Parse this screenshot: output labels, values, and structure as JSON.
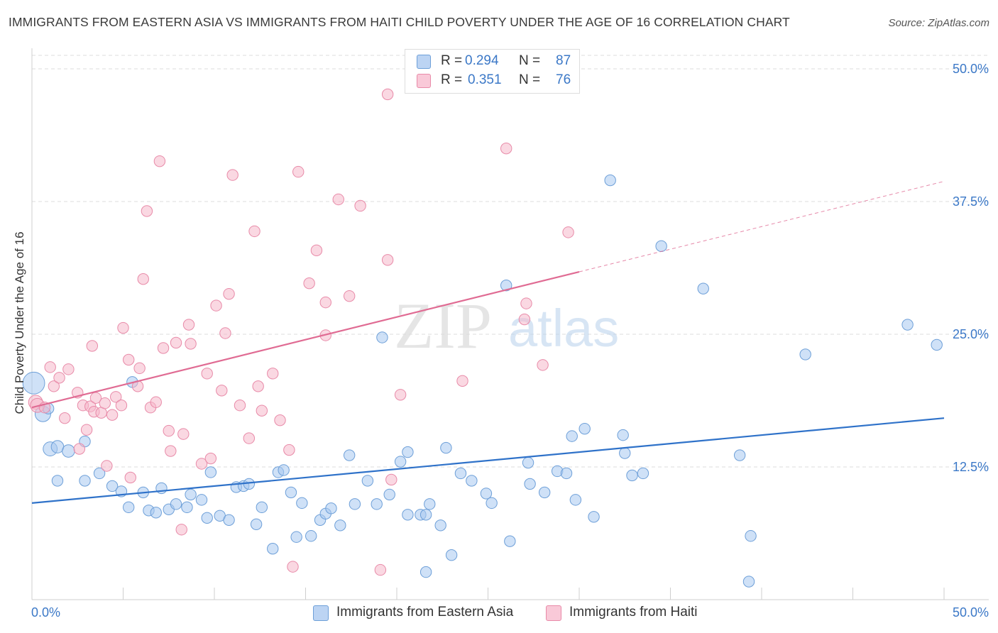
{
  "header": {
    "title": "IMMIGRANTS FROM EASTERN ASIA VS IMMIGRANTS FROM HAITI CHILD POVERTY UNDER THE AGE OF 16 CORRELATION CHART",
    "source": "Source: ZipAtlas.com"
  },
  "watermark": {
    "zip": "ZIP",
    "atlas": "atlas"
  },
  "legend": {
    "series1": {
      "r_label": "R =",
      "r_value": "0.294",
      "n_label": "N =",
      "n_value": "87"
    },
    "series2": {
      "r_label": "R =",
      "r_value": "0.351",
      "n_label": "N =",
      "n_value": "76"
    }
  },
  "colors": {
    "blue_fill": "#a8c8f0",
    "blue_stroke": "#6d9fd8",
    "blue_line": "#2f72c9",
    "pink_fill": "#f6b8cb",
    "pink_stroke": "#e88aa8",
    "pink_line": "#e06b93",
    "axis_label": "#3b78c7",
    "grid": "#dcdcdc"
  },
  "chart_data": {
    "type": "scatter",
    "title": "IMMIGRANTS FROM EASTERN ASIA VS IMMIGRANTS FROM HAITI CHILD POVERTY UNDER THE AGE OF 16 CORRELATION CHART",
    "xlabel": "",
    "ylabel": "Child Poverty Under the Age of 16",
    "xlim": [
      0,
      50
    ],
    "ylim": [
      0,
      50
    ],
    "x_tick_labels": [
      "0.0%",
      "50.0%"
    ],
    "y_tick_labels": [
      "12.5%",
      "25.0%",
      "37.5%",
      "50.0%"
    ],
    "y_ticks": [
      12.5,
      25,
      37.5,
      50
    ],
    "grid": true,
    "legend_position": "top-center",
    "series": [
      {
        "name": "Immigrants from Eastern Asia",
        "r": 0.294,
        "n": 87,
        "trend": {
          "x": [
            0,
            50
          ],
          "y": [
            9.1,
            17.1
          ],
          "dashed_from": null
        },
        "points": [
          [
            0.1,
            20.4,
            14
          ],
          [
            0.6,
            17.5,
            10
          ],
          [
            0.9,
            18.0,
            7
          ],
          [
            1.0,
            14.2,
            9
          ],
          [
            1.4,
            14.4,
            8
          ],
          [
            2.0,
            14.0,
            8
          ],
          [
            1.4,
            11.2,
            7
          ],
          [
            2.9,
            14.9,
            7
          ],
          [
            2.9,
            11.2,
            7
          ],
          [
            3.7,
            11.9,
            7
          ],
          [
            4.4,
            10.7,
            7
          ],
          [
            4.9,
            10.2,
            7
          ],
          [
            5.3,
            8.7,
            7
          ],
          [
            5.5,
            20.5,
            7
          ],
          [
            6.1,
            10.1,
            7
          ],
          [
            6.4,
            8.4,
            7
          ],
          [
            6.8,
            8.2,
            7
          ],
          [
            7.1,
            10.5,
            7
          ],
          [
            7.5,
            8.5,
            7
          ],
          [
            7.9,
            9.0,
            7
          ],
          [
            8.5,
            8.7,
            7
          ],
          [
            8.7,
            9.9,
            7
          ],
          [
            9.3,
            9.4,
            7
          ],
          [
            9.6,
            7.7,
            7
          ],
          [
            9.8,
            12.0,
            7
          ],
          [
            10.3,
            7.9,
            7
          ],
          [
            10.8,
            7.5,
            7
          ],
          [
            11.2,
            10.6,
            7
          ],
          [
            11.6,
            10.7,
            7
          ],
          [
            11.9,
            10.9,
            7
          ],
          [
            12.6,
            8.7,
            7
          ],
          [
            12.3,
            7.1,
            7
          ],
          [
            13.2,
            4.8,
            7
          ],
          [
            13.5,
            12.0,
            7
          ],
          [
            13.8,
            12.2,
            7
          ],
          [
            14.2,
            10.1,
            7
          ],
          [
            14.5,
            5.9,
            7
          ],
          [
            14.8,
            9.1,
            7
          ],
          [
            15.3,
            6.0,
            7
          ],
          [
            15.8,
            7.5,
            7
          ],
          [
            16.1,
            8.1,
            7
          ],
          [
            16.4,
            8.6,
            7
          ],
          [
            16.9,
            7.0,
            7
          ],
          [
            17.4,
            13.6,
            7
          ],
          [
            17.7,
            9.0,
            7
          ],
          [
            18.4,
            11.2,
            7
          ],
          [
            18.9,
            9.0,
            7
          ],
          [
            19.2,
            24.7,
            7
          ],
          [
            19.6,
            9.9,
            7
          ],
          [
            20.2,
            13.0,
            7
          ],
          [
            20.6,
            13.9,
            7
          ],
          [
            20.6,
            8.0,
            7
          ],
          [
            21.3,
            8.0,
            7
          ],
          [
            21.6,
            2.6,
            7
          ],
          [
            21.6,
            8.0,
            7
          ],
          [
            21.8,
            9.0,
            7
          ],
          [
            22.4,
            7.0,
            7
          ],
          [
            22.7,
            14.3,
            7
          ],
          [
            23.0,
            4.2,
            7
          ],
          [
            23.5,
            11.9,
            7
          ],
          [
            24.1,
            11.2,
            7
          ],
          [
            24.9,
            10.0,
            7
          ],
          [
            25.2,
            9.1,
            7
          ],
          [
            26.0,
            29.6,
            7
          ],
          [
            26.2,
            5.5,
            7
          ],
          [
            27.2,
            12.9,
            7
          ],
          [
            27.3,
            10.9,
            7
          ],
          [
            28.1,
            10.1,
            7
          ],
          [
            28.8,
            12.1,
            7
          ],
          [
            29.3,
            11.9,
            7
          ],
          [
            29.6,
            15.4,
            7
          ],
          [
            29.8,
            9.4,
            7
          ],
          [
            30.3,
            16.1,
            7
          ],
          [
            30.8,
            7.8,
            7
          ],
          [
            31.7,
            39.5,
            7
          ],
          [
            32.4,
            15.5,
            7
          ],
          [
            32.5,
            13.8,
            7
          ],
          [
            32.9,
            11.7,
            7
          ],
          [
            33.5,
            11.9,
            7
          ],
          [
            34.5,
            33.3,
            7
          ],
          [
            36.8,
            29.3,
            7
          ],
          [
            38.8,
            13.6,
            7
          ],
          [
            39.3,
            1.7,
            7
          ],
          [
            39.4,
            6.0,
            7
          ],
          [
            42.4,
            23.1,
            7
          ],
          [
            48.0,
            25.9,
            7
          ],
          [
            49.6,
            24.0,
            7
          ]
        ]
      },
      {
        "name": "Immigrants from Haiti",
        "r": 0.351,
        "n": 76,
        "trend": {
          "x": [
            0,
            50
          ],
          "y": [
            18.1,
            39.4
          ],
          "dashed_from": 30
        },
        "points": [
          [
            0.2,
            18.6,
            9
          ],
          [
            0.3,
            18.3,
            9
          ],
          [
            0.7,
            18.1,
            7
          ],
          [
            1.0,
            21.9,
            7
          ],
          [
            1.2,
            20.1,
            7
          ],
          [
            1.5,
            20.9,
            7
          ],
          [
            1.8,
            17.1,
            7
          ],
          [
            2.0,
            21.7,
            7
          ],
          [
            2.5,
            19.5,
            7
          ],
          [
            2.6,
            14.2,
            7
          ],
          [
            2.8,
            18.3,
            7
          ],
          [
            3.0,
            16.0,
            7
          ],
          [
            3.2,
            18.2,
            7
          ],
          [
            3.3,
            23.9,
            7
          ],
          [
            3.4,
            17.7,
            7
          ],
          [
            3.5,
            19.0,
            7
          ],
          [
            3.8,
            17.6,
            7
          ],
          [
            4.0,
            18.5,
            7
          ],
          [
            4.1,
            12.6,
            7
          ],
          [
            4.4,
            17.4,
            7
          ],
          [
            4.6,
            19.1,
            7
          ],
          [
            4.9,
            18.3,
            7
          ],
          [
            5.0,
            25.6,
            7
          ],
          [
            5.3,
            22.6,
            7
          ],
          [
            5.4,
            11.5,
            7
          ],
          [
            5.8,
            20.1,
            7
          ],
          [
            5.9,
            21.8,
            7
          ],
          [
            6.1,
            30.2,
            7
          ],
          [
            6.3,
            36.6,
            7
          ],
          [
            6.5,
            18.1,
            7
          ],
          [
            6.8,
            18.6,
            7
          ],
          [
            7.0,
            41.3,
            7
          ],
          [
            7.2,
            23.7,
            7
          ],
          [
            7.5,
            15.9,
            7
          ],
          [
            7.6,
            14.0,
            7
          ],
          [
            7.9,
            24.2,
            7
          ],
          [
            8.2,
            6.6,
            7
          ],
          [
            8.3,
            15.6,
            7
          ],
          [
            8.6,
            25.9,
            7
          ],
          [
            8.7,
            24.1,
            7
          ],
          [
            9.3,
            12.8,
            7
          ],
          [
            9.6,
            21.3,
            7
          ],
          [
            9.8,
            13.3,
            7
          ],
          [
            10.1,
            27.7,
            7
          ],
          [
            10.4,
            19.7,
            7
          ],
          [
            10.6,
            25.1,
            7
          ],
          [
            10.8,
            28.8,
            7
          ],
          [
            11.0,
            40.0,
            7
          ],
          [
            11.4,
            18.3,
            7
          ],
          [
            11.9,
            15.2,
            7
          ],
          [
            12.2,
            34.7,
            7
          ],
          [
            12.4,
            20.1,
            7
          ],
          [
            12.6,
            17.8,
            7
          ],
          [
            13.2,
            21.3,
            7
          ],
          [
            13.6,
            16.9,
            7
          ],
          [
            14.1,
            14.1,
            7
          ],
          [
            14.3,
            3.1,
            7
          ],
          [
            14.6,
            40.3,
            7
          ],
          [
            15.2,
            29.8,
            7
          ],
          [
            15.6,
            32.9,
            7
          ],
          [
            16.1,
            24.9,
            7
          ],
          [
            16.1,
            28.0,
            7
          ],
          [
            16.8,
            37.7,
            7
          ],
          [
            17.4,
            28.6,
            7
          ],
          [
            18.0,
            37.1,
            7
          ],
          [
            19.1,
            2.8,
            7
          ],
          [
            19.5,
            47.6,
            7
          ],
          [
            19.5,
            32.0,
            7
          ],
          [
            19.7,
            11.3,
            7
          ],
          [
            20.2,
            19.3,
            7
          ],
          [
            23.6,
            20.6,
            7
          ],
          [
            26.0,
            42.5,
            7
          ],
          [
            27.0,
            26.4,
            7
          ],
          [
            27.1,
            27.9,
            7
          ],
          [
            28.0,
            22.1,
            7
          ],
          [
            29.4,
            34.6,
            7
          ]
        ]
      }
    ]
  },
  "bottom_legend": {
    "item1": "Immigrants from Eastern Asia",
    "item2": "Immigrants from Haiti"
  }
}
